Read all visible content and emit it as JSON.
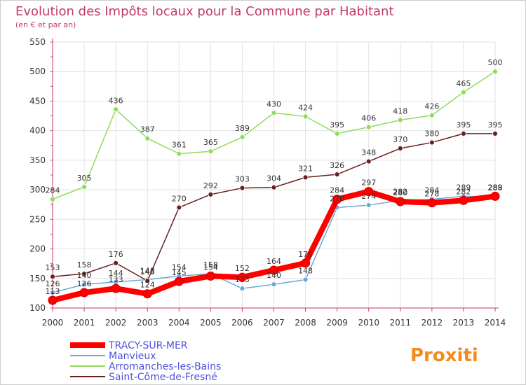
{
  "chart_data": {
    "type": "line",
    "title": "Evolution des Impôts locaux pour la Commune par Habitant",
    "subtitle": "(en € et par an)",
    "x": [
      "2000",
      "2001",
      "2002",
      "2003",
      "2004",
      "2005",
      "2006",
      "2007",
      "2008",
      "2009",
      "2010",
      "2011",
      "2012",
      "2013",
      "2014"
    ],
    "ylim": [
      100,
      550
    ],
    "yticks": [
      100,
      150,
      200,
      250,
      300,
      350,
      400,
      450,
      500,
      550
    ],
    "grid": true,
    "legend_position": "bottom-left",
    "series": [
      {
        "name": "TRACY-SUR-MER",
        "color": "#ff0000",
        "emphasis": true,
        "show_labels": true,
        "values": [
          113,
          126,
          133,
          124,
          145,
          154,
          152,
          164,
          176,
          284,
          297,
          280,
          278,
          282,
          289
        ]
      },
      {
        "name": "Manvieux",
        "color": "#6ea6d8",
        "show_labels": true,
        "values": [
          126,
          140,
          144,
          148,
          154,
          158,
          133,
          140,
          148,
          270,
          274,
          282,
          284,
          289,
          288
        ]
      },
      {
        "name": "Arromanches-les-Bains",
        "color": "#8fdc5a",
        "show_labels": true,
        "values": [
          284,
          305,
          436,
          387,
          361,
          365,
          389,
          430,
          424,
          395,
          406,
          418,
          426,
          465,
          500
        ]
      },
      {
        "name": "Saint-Côme-de-Fresné",
        "color": "#6b1f1f",
        "show_labels": true,
        "values": [
          153,
          158,
          176,
          146,
          270,
          292,
          303,
          304,
          321,
          326,
          348,
          370,
          380,
          395,
          395
        ]
      }
    ]
  },
  "logo": {
    "text": "Proxiti"
  }
}
